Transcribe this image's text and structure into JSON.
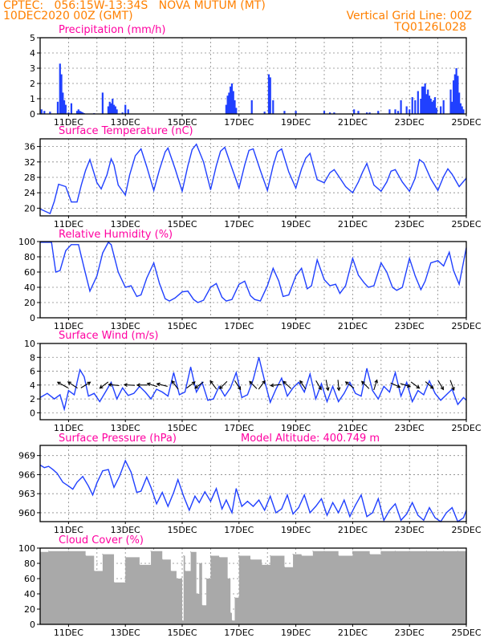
{
  "header": {
    "source": "CPTEC:",
    "coords": "056:15W-13:34S",
    "station": "NOVA MUTUM (MT)",
    "date": "10DEC2020 00Z (GMT)",
    "grid_note": "Vertical Grid Line: 00Z",
    "code": "TQ0126L028"
  },
  "colors": {
    "header": "#ff8000",
    "title": "#ff00a0",
    "series": "#2040ff",
    "cloud": "#a9a9a9",
    "frame": "#000000"
  },
  "chart_data": [
    {
      "type": "bar",
      "title": "Precipitation (mm/h)",
      "categories": [
        "11DEC",
        "13DEC",
        "15DEC",
        "17DEC",
        "19DEC",
        "21DEC",
        "23DEC",
        "25DEC"
      ],
      "x_day_range": [
        10.0,
        25.0
      ],
      "ylim": [
        0,
        5
      ],
      "yticks": [
        0,
        1,
        2,
        3,
        4,
        5
      ],
      "grid": true,
      "x": [
        10.05,
        10.15,
        10.35,
        10.62,
        10.7,
        10.75,
        10.8,
        10.85,
        10.9,
        11.0,
        11.1,
        11.3,
        11.35,
        11.4,
        11.45,
        11.5,
        11.55,
        11.9,
        12.2,
        12.4,
        12.45,
        12.5,
        12.55,
        12.6,
        12.65,
        12.7,
        12.9,
        13.0,
        13.1,
        16.55,
        16.6,
        16.65,
        16.7,
        16.75,
        16.8,
        16.85,
        16.9,
        17.45,
        17.9,
        18.05,
        18.1,
        18.2,
        18.6,
        19.0,
        20.0,
        20.2,
        20.35,
        21.05,
        21.2,
        21.5,
        21.6,
        21.9,
        22.3,
        22.5,
        22.6,
        22.7,
        22.9,
        23.0,
        23.1,
        23.2,
        23.3,
        23.4,
        23.45,
        23.5,
        23.55,
        23.6,
        23.65,
        23.7,
        23.75,
        23.8,
        23.85,
        23.9,
        23.95,
        24.1,
        24.2,
        24.45,
        24.5,
        24.55,
        24.6,
        24.65,
        24.7,
        24.75,
        24.8,
        24.85,
        24.9
      ],
      "values": [
        0.3,
        0.2,
        0.15,
        0.8,
        3.3,
        2.6,
        1.4,
        0.9,
        0.6,
        0.1,
        0.7,
        0.2,
        0.3,
        0.2,
        0.15,
        0.1,
        0.05,
        0.05,
        1.4,
        0.5,
        0.8,
        0.7,
        1.0,
        0.6,
        0.5,
        0.3,
        0.1,
        0.6,
        0.3,
        0.6,
        1.2,
        1.4,
        1.8,
        2.0,
        1.5,
        0.9,
        0.4,
        0.9,
        0.15,
        2.6,
        2.4,
        0.9,
        0.2,
        0.2,
        0.2,
        0.1,
        0.1,
        0.3,
        0.2,
        0.1,
        0.1,
        0.2,
        0.3,
        0.3,
        0.2,
        0.9,
        0.5,
        0.3,
        1.1,
        0.9,
        1.5,
        1.0,
        1.8,
        1.8,
        2.0,
        1.3,
        1.6,
        1.2,
        1.0,
        0.8,
        0.9,
        1.1,
        0.4,
        0.5,
        0.9,
        1.6,
        0.8,
        2.2,
        2.6,
        3.0,
        2.5,
        1.4,
        0.7,
        0.5,
        0.3
      ]
    },
    {
      "type": "line",
      "title": "Surface Temperature (nC)",
      "categories": [
        "11DEC",
        "13DEC",
        "15DEC",
        "17DEC",
        "19DEC",
        "21DEC",
        "23DEC",
        "25DEC"
      ],
      "x_day_range": [
        10.0,
        25.0
      ],
      "ylim": [
        18,
        38
      ],
      "yticks": [
        20,
        24,
        28,
        32,
        36
      ],
      "grid": true,
      "x": [
        10.0,
        10.35,
        10.5,
        10.65,
        10.9,
        11.1,
        11.3,
        11.45,
        11.6,
        11.75,
        12.0,
        12.15,
        12.35,
        12.5,
        12.6,
        12.75,
        13.0,
        13.15,
        13.35,
        13.55,
        13.75,
        14.0,
        14.2,
        14.4,
        14.5,
        14.75,
        15.0,
        15.2,
        15.35,
        15.5,
        15.75,
        16.0,
        16.2,
        16.35,
        16.5,
        16.75,
        17.0,
        17.2,
        17.35,
        17.5,
        17.75,
        18.0,
        18.2,
        18.35,
        18.5,
        18.75,
        19.0,
        19.2,
        19.35,
        19.5,
        19.75,
        20.0,
        20.2,
        20.35,
        20.5,
        20.75,
        21.0,
        21.2,
        21.35,
        21.5,
        21.75,
        22.0,
        22.2,
        22.35,
        22.5,
        22.75,
        23.0,
        23.2,
        23.35,
        23.5,
        23.75,
        24.0,
        24.2,
        24.35,
        24.5,
        24.75,
        25.0
      ],
      "values": [
        19.8,
        18.6,
        21.8,
        26.2,
        25.6,
        21.6,
        21.6,
        26.0,
        29.8,
        32.6,
        26.6,
        25.0,
        28.6,
        32.8,
        31.2,
        26.0,
        23.4,
        28.6,
        33.6,
        35.4,
        30.8,
        24.6,
        30.0,
        34.6,
        35.6,
        30.2,
        24.4,
        31.0,
        35.2,
        36.6,
        32.0,
        24.8,
        31.0,
        34.8,
        35.8,
        30.4,
        25.2,
        31.2,
        35.0,
        35.4,
        29.8,
        24.6,
        31.0,
        34.6,
        35.4,
        29.4,
        25.2,
        30.2,
        33.0,
        34.2,
        27.4,
        26.6,
        29.2,
        30.0,
        28.4,
        25.6,
        24.0,
        26.8,
        29.4,
        31.6,
        26.0,
        24.4,
        26.8,
        29.6,
        30.0,
        26.8,
        24.4,
        27.8,
        32.6,
        31.8,
        27.6,
        24.6,
        28.2,
        30.2,
        28.8,
        25.6,
        27.8
      ]
    },
    {
      "type": "line",
      "title": "Relative Humidity (%)",
      "categories": [
        "11DEC",
        "13DEC",
        "15DEC",
        "17DEC",
        "19DEC",
        "21DEC",
        "23DEC",
        "25DEC"
      ],
      "x_day_range": [
        10.0,
        25.0
      ],
      "ylim": [
        0,
        100
      ],
      "yticks": [
        0,
        20,
        40,
        60,
        80,
        100
      ],
      "grid": true,
      "x": [
        10.0,
        10.4,
        10.55,
        10.7,
        10.9,
        11.1,
        11.35,
        11.55,
        11.75,
        12.0,
        12.2,
        12.4,
        12.5,
        12.75,
        13.0,
        13.2,
        13.4,
        13.55,
        13.75,
        14.0,
        14.2,
        14.4,
        14.55,
        14.75,
        15.0,
        15.2,
        15.4,
        15.55,
        15.75,
        16.0,
        16.2,
        16.4,
        16.55,
        16.75,
        17.0,
        17.2,
        17.4,
        17.55,
        17.75,
        18.0,
        18.2,
        18.4,
        18.55,
        18.75,
        19.0,
        19.2,
        19.4,
        19.55,
        19.75,
        20.0,
        20.2,
        20.4,
        20.55,
        20.75,
        21.0,
        21.2,
        21.4,
        21.55,
        21.75,
        22.0,
        22.2,
        22.4,
        22.55,
        22.75,
        23.0,
        23.2,
        23.4,
        23.55,
        23.75,
        24.0,
        24.2,
        24.4,
        24.55,
        24.75,
        25.0
      ],
      "values": [
        99,
        99,
        60,
        62,
        88,
        96,
        96,
        65,
        35,
        55,
        85,
        99,
        96,
        60,
        40,
        42,
        28,
        30,
        52,
        72,
        45,
        25,
        22,
        26,
        34,
        35,
        24,
        20,
        23,
        40,
        45,
        27,
        22,
        24,
        44,
        48,
        29,
        24,
        22,
        42,
        65,
        48,
        28,
        30,
        55,
        65,
        38,
        42,
        76,
        50,
        42,
        44,
        32,
        42,
        78,
        56,
        46,
        40,
        42,
        72,
        60,
        40,
        36,
        40,
        78,
        55,
        37,
        48,
        72,
        75,
        68,
        86,
        62,
        44,
        92
      ]
    },
    {
      "type": "line",
      "title": "Surface Wind (m/s)",
      "categories": [
        "11DEC",
        "13DEC",
        "15DEC",
        "17DEC",
        "19DEC",
        "21DEC",
        "23DEC",
        "25DEC"
      ],
      "x_day_range": [
        10.0,
        25.0
      ],
      "ylim": [
        -1,
        10
      ],
      "yticks": [
        0,
        2,
        4,
        6,
        8,
        10
      ],
      "grid": true,
      "x": [
        10.0,
        10.25,
        10.5,
        10.7,
        10.85,
        11.0,
        11.2,
        11.4,
        11.55,
        11.7,
        11.9,
        12.1,
        12.3,
        12.5,
        12.7,
        12.9,
        13.1,
        13.3,
        13.5,
        13.7,
        13.9,
        14.1,
        14.3,
        14.5,
        14.7,
        14.9,
        15.1,
        15.3,
        15.5,
        15.7,
        15.9,
        16.1,
        16.3,
        16.5,
        16.7,
        16.9,
        17.1,
        17.3,
        17.5,
        17.7,
        17.9,
        18.1,
        18.3,
        18.5,
        18.7,
        18.9,
        19.1,
        19.3,
        19.5,
        19.7,
        19.9,
        20.1,
        20.3,
        20.5,
        20.7,
        20.9,
        21.1,
        21.3,
        21.5,
        21.7,
        21.9,
        22.1,
        22.3,
        22.5,
        22.7,
        22.9,
        23.1,
        23.3,
        23.5,
        23.7,
        23.9,
        24.1,
        24.3,
        24.5,
        24.7,
        24.9,
        25.0
      ],
      "values": [
        2.2,
        2.8,
        2.0,
        2.6,
        0.5,
        3.2,
        2.6,
        6.2,
        5.2,
        2.4,
        2.8,
        1.6,
        3.0,
        4.4,
        2.0,
        3.6,
        2.5,
        2.8,
        3.8,
        3.0,
        2.0,
        3.4,
        3.0,
        2.4,
        5.8,
        2.6,
        3.0,
        6.6,
        3.0,
        4.4,
        1.8,
        2.0,
        3.8,
        2.4,
        3.6,
        5.8,
        2.2,
        2.6,
        4.8,
        8.0,
        4.6,
        1.5,
        3.4,
        5.0,
        2.4,
        3.6,
        4.4,
        3.0,
        5.6,
        2.0,
        4.2,
        1.6,
        3.8,
        1.6,
        2.8,
        4.4,
        2.8,
        2.4,
        6.4,
        3.2,
        2.0,
        3.8,
        3.0,
        5.8,
        2.4,
        4.4,
        1.6,
        3.2,
        2.6,
        4.6,
        2.8,
        1.8,
        2.6,
        3.4,
        1.2,
        2.2,
        1.8
      ],
      "arrows": [
        {
          "day": 10.8,
          "dx": -1.0,
          "dy": 0.55
        },
        {
          "day": 11.15,
          "dx": -0.9,
          "dy": 0.6
        },
        {
          "day": 11.6,
          "dx": 0.9,
          "dy": 0.55
        },
        {
          "day": 12.25,
          "dx": -0.8,
          "dy": -0.6
        },
        {
          "day": 12.6,
          "dx": -1.0,
          "dy": 0.1
        },
        {
          "day": 13.15,
          "dx": -1.0,
          "dy": 0.05
        },
        {
          "day": 13.6,
          "dx": -1.0,
          "dy": 0.0
        },
        {
          "day": 13.95,
          "dx": -0.95,
          "dy": 0.3
        },
        {
          "day": 14.3,
          "dx": -1.0,
          "dy": 0.25
        },
        {
          "day": 14.75,
          "dx": -0.6,
          "dy": 0.8
        },
        {
          "day": 15.3,
          "dx": 0.8,
          "dy": 0.6
        },
        {
          "day": 15.6,
          "dx": -0.8,
          "dy": -0.6
        },
        {
          "day": 16.1,
          "dx": -0.6,
          "dy": 0.8
        },
        {
          "day": 16.45,
          "dx": -0.7,
          "dy": -0.7
        },
        {
          "day": 16.95,
          "dx": 0.55,
          "dy": -0.85
        },
        {
          "day": 17.5,
          "dx": -0.7,
          "dy": 0.7
        },
        {
          "day": 17.8,
          "dx": 0.6,
          "dy": 0.8
        },
        {
          "day": 18.3,
          "dx": -1.0,
          "dy": -0.1
        },
        {
          "day": 18.7,
          "dx": -0.75,
          "dy": 0.7
        },
        {
          "day": 19.25,
          "dx": -0.55,
          "dy": 0.8
        },
        {
          "day": 19.8,
          "dx": 0.5,
          "dy": -0.85
        },
        {
          "day": 20.1,
          "dx": 0.2,
          "dy": -1.0
        },
        {
          "day": 20.5,
          "dx": 0.1,
          "dy": -1.0
        },
        {
          "day": 20.9,
          "dx": -0.8,
          "dy": 0.6
        },
        {
          "day": 21.45,
          "dx": -0.7,
          "dy": 0.7
        },
        {
          "day": 21.8,
          "dx": 0.3,
          "dy": 0.95
        },
        {
          "day": 22.5,
          "dx": 0.9,
          "dy": -0.4
        },
        {
          "day": 22.85,
          "dx": 0.95,
          "dy": -0.3
        },
        {
          "day": 23.2,
          "dx": 0.8,
          "dy": -0.6
        },
        {
          "day": 23.7,
          "dx": 0.75,
          "dy": -0.65
        },
        {
          "day": 24.1,
          "dx": 0.5,
          "dy": -0.85
        },
        {
          "day": 24.5,
          "dx": 0.35,
          "dy": -0.95
        }
      ]
    },
    {
      "type": "line",
      "title": "Surface Pressure (hPa)",
      "annotation": "Model Altitude: 400.749  m",
      "categories": [
        "11DEC",
        "13DEC",
        "15DEC",
        "17DEC",
        "19DEC",
        "21DEC",
        "23DEC",
        "25DEC"
      ],
      "x_day_range": [
        10.0,
        25.0
      ],
      "ylim": [
        958.6,
        970.6
      ],
      "yticks": [
        960,
        963,
        966,
        969
      ],
      "grid": true,
      "x": [
        10.0,
        10.15,
        10.3,
        10.45,
        10.6,
        10.8,
        11.0,
        11.15,
        11.3,
        11.5,
        11.7,
        11.85,
        12.0,
        12.2,
        12.4,
        12.6,
        12.8,
        13.0,
        13.2,
        13.4,
        13.55,
        13.75,
        13.9,
        14.1,
        14.3,
        14.5,
        14.7,
        14.85,
        15.05,
        15.25,
        15.45,
        15.6,
        15.8,
        16.0,
        16.2,
        16.4,
        16.55,
        16.75,
        16.9,
        17.1,
        17.3,
        17.5,
        17.7,
        17.9,
        18.1,
        18.3,
        18.5,
        18.7,
        18.9,
        19.1,
        19.3,
        19.5,
        19.7,
        19.9,
        20.1,
        20.3,
        20.5,
        20.7,
        20.9,
        21.1,
        21.3,
        21.5,
        21.7,
        21.9,
        22.1,
        22.3,
        22.5,
        22.7,
        22.9,
        23.1,
        23.3,
        23.5,
        23.7,
        23.9,
        24.1,
        24.3,
        24.5,
        24.7,
        24.9,
        25.0
      ],
      "values": [
        967.5,
        967.1,
        967.3,
        966.8,
        966.2,
        964.8,
        964.2,
        963.7,
        964.8,
        965.7,
        964.2,
        962.8,
        964.7,
        966.6,
        966.8,
        964.0,
        965.8,
        968.2,
        966.4,
        963.2,
        963.4,
        965.6,
        964.0,
        961.4,
        963.2,
        961.0,
        963.2,
        965.2,
        962.6,
        960.4,
        962.6,
        961.6,
        963.3,
        961.8,
        963.8,
        960.6,
        962.0,
        960.0,
        963.8,
        961.0,
        961.8,
        961.0,
        962.0,
        960.4,
        962.6,
        960.0,
        960.6,
        962.8,
        959.8,
        960.8,
        962.8,
        960.0,
        961.0,
        962.2,
        959.6,
        961.6,
        960.0,
        962.0,
        959.4,
        961.2,
        962.8,
        959.4,
        960.0,
        962.2,
        958.8,
        960.4,
        961.4,
        958.8,
        959.8,
        961.6,
        959.6,
        958.8,
        960.8,
        959.2,
        958.6,
        960.0,
        960.8,
        958.6,
        959.2,
        960.4
      ]
    },
    {
      "type": "bar",
      "title": "Cloud Cover (%)",
      "categories": [
        "11DEC",
        "13DEC",
        "15DEC",
        "17DEC",
        "19DEC",
        "21DEC",
        "23DEC",
        "25DEC"
      ],
      "x_day_range": [
        10.0,
        25.0
      ],
      "ylim": [
        0,
        100
      ],
      "yticks": [
        0,
        20,
        40,
        60,
        80,
        100
      ],
      "grid": true,
      "x": [
        10.0,
        10.3,
        11.0,
        11.6,
        11.9,
        12.2,
        12.6,
        13.0,
        13.5,
        13.9,
        14.3,
        14.6,
        14.8,
        15.0,
        15.05,
        15.1,
        15.3,
        15.5,
        15.6,
        15.7,
        15.85,
        16.0,
        16.3,
        16.6,
        16.7,
        16.75,
        16.85,
        17.0,
        17.4,
        17.8,
        18.1,
        18.6,
        18.9,
        19.2,
        19.6,
        20.0,
        20.5,
        21.0,
        21.6,
        22.0,
        22.5,
        23.0,
        23.6,
        24.2,
        24.7
      ],
      "values": [
        95,
        96,
        96,
        90,
        70,
        92,
        55,
        88,
        78,
        96,
        85,
        70,
        60,
        5,
        90,
        70,
        95,
        40,
        80,
        25,
        60,
        90,
        88,
        60,
        15,
        5,
        35,
        90,
        85,
        78,
        90,
        75,
        92,
        90,
        96,
        96,
        90,
        96,
        92,
        96,
        96,
        96,
        96,
        96,
        96
      ]
    }
  ]
}
